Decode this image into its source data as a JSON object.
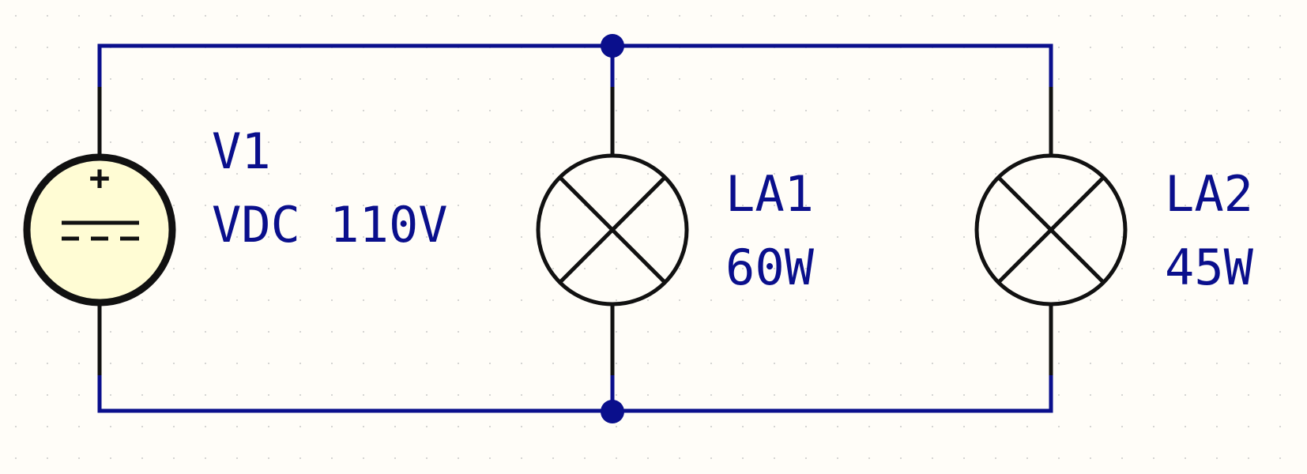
{
  "colors": {
    "background": "#FFFDF8",
    "wire": "#0A0F8C",
    "component": "#111111",
    "source_fill": "#FFFCD4",
    "label": "#0A0F8C",
    "grid_dot": "#C8C8C8"
  },
  "source": {
    "ref": "V1",
    "value": "VDC 110V",
    "polarity_symbol": "+"
  },
  "lamps": [
    {
      "ref": "LA1",
      "value": "60W"
    },
    {
      "ref": "LA2",
      "value": "45W"
    }
  ]
}
